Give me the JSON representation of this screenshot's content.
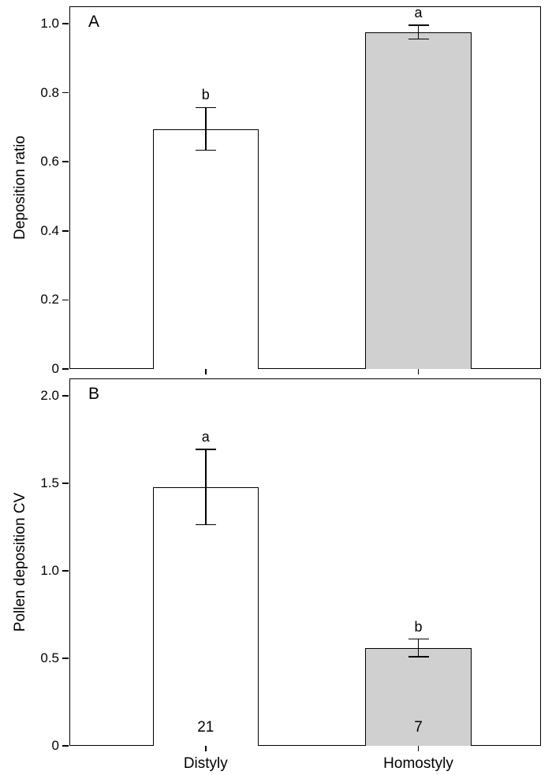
{
  "figure": {
    "background": "#ffffff",
    "axis_color": "#000000"
  },
  "chart_data": [
    {
      "type": "bar",
      "panel_label": "A",
      "title": "",
      "xlabel": "",
      "ylabel": "Deposition ratio",
      "ylim": [
        0,
        1.05
      ],
      "yticks": [
        0,
        0.2,
        0.4,
        0.6,
        0.8,
        1.0
      ],
      "ytick_labels": [
        "0",
        "0.2",
        "0.4",
        "0.6",
        "0.8",
        "1.0"
      ],
      "categories": [
        "Distyly",
        "Homostyly"
      ],
      "values": [
        0.695,
        0.975
      ],
      "errors": [
        0.062,
        0.02
      ],
      "sig_letters": [
        "b",
        "a"
      ],
      "sample_sizes": null,
      "bar_colors": [
        "#ffffff",
        "#d0d0d0"
      ],
      "grid": "off",
      "legend": "none",
      "show_x_labels": false
    },
    {
      "type": "bar",
      "panel_label": "B",
      "title": "",
      "xlabel": "",
      "ylabel": "Pollen deposition CV",
      "ylim": [
        0,
        2.1
      ],
      "yticks": [
        0,
        0.5,
        1.0,
        1.5,
        2.0
      ],
      "ytick_labels": [
        "0",
        "0.5",
        "1.0",
        "1.5",
        "2.0"
      ],
      "categories": [
        "Distyly",
        "Homostyly"
      ],
      "values": [
        1.48,
        0.56
      ],
      "errors": [
        0.215,
        0.05
      ],
      "sig_letters": [
        "a",
        "b"
      ],
      "sample_sizes": [
        "21",
        "7"
      ],
      "bar_colors": [
        "#ffffff",
        "#d0d0d0"
      ],
      "grid": "off",
      "legend": "none",
      "show_x_labels": true
    }
  ]
}
